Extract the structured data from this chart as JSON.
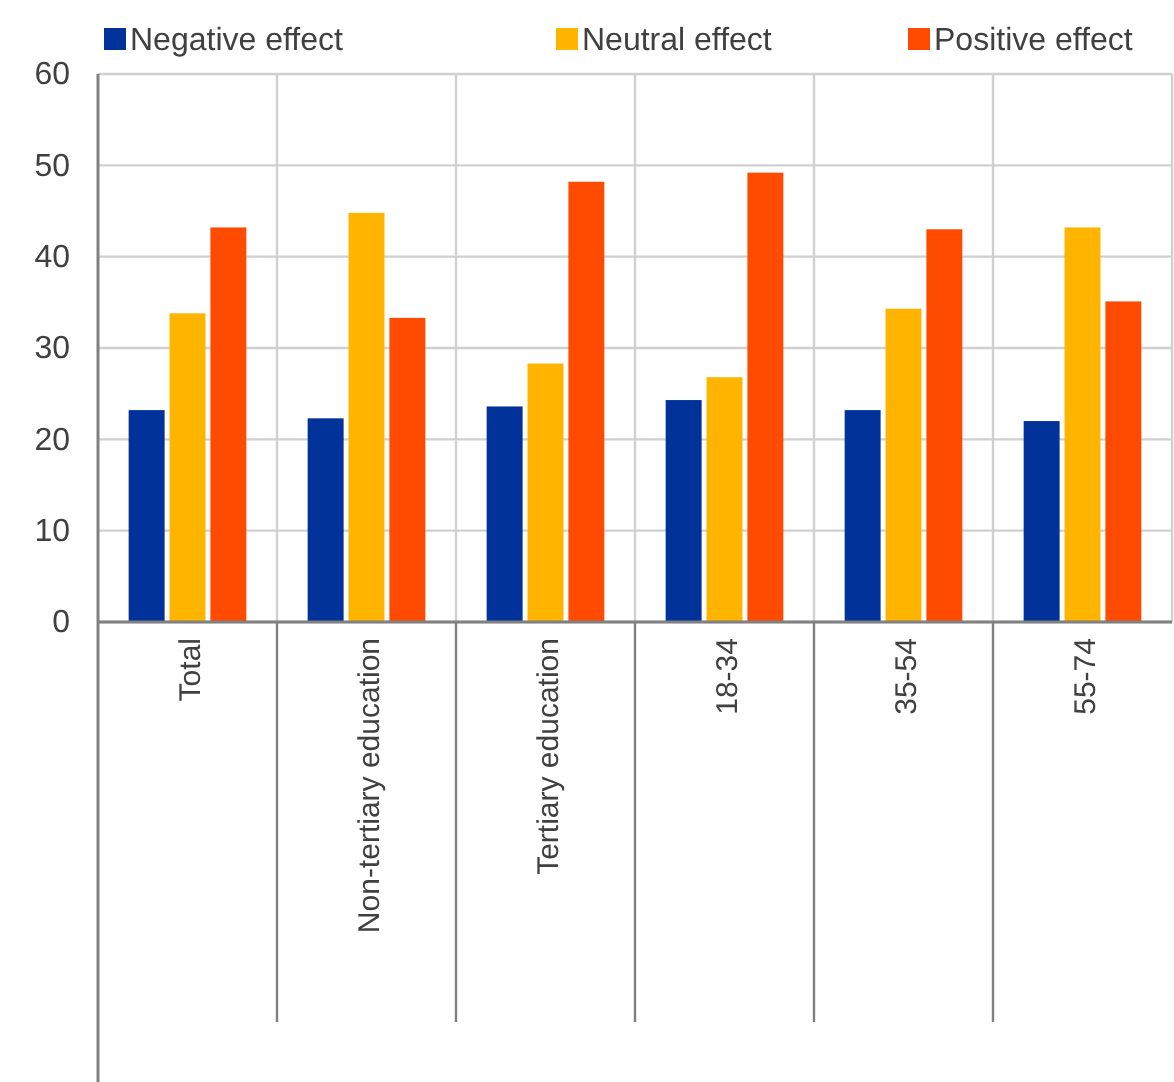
{
  "chart_data": {
    "type": "bar",
    "categories": [
      "Total",
      "Non-tertiary education",
      "Tertiary education",
      "18-34",
      "35-54",
      "55-74"
    ],
    "series": [
      {
        "name": "Negative effect",
        "color": "#003299",
        "values": [
          23.2,
          22.3,
          23.6,
          24.3,
          23.2,
          22.0
        ]
      },
      {
        "name": "Neutral effect",
        "color": "#ffb400",
        "values": [
          33.8,
          44.8,
          28.3,
          26.8,
          34.3,
          43.2
        ]
      },
      {
        "name": "Positive effect",
        "color": "#ff4b00",
        "values": [
          43.2,
          33.3,
          48.2,
          49.2,
          43.0,
          35.1
        ]
      }
    ],
    "ylim": [
      0,
      60
    ],
    "yticks": [
      0,
      10,
      20,
      30,
      40,
      50,
      60
    ],
    "grid": true,
    "legend": "top"
  }
}
